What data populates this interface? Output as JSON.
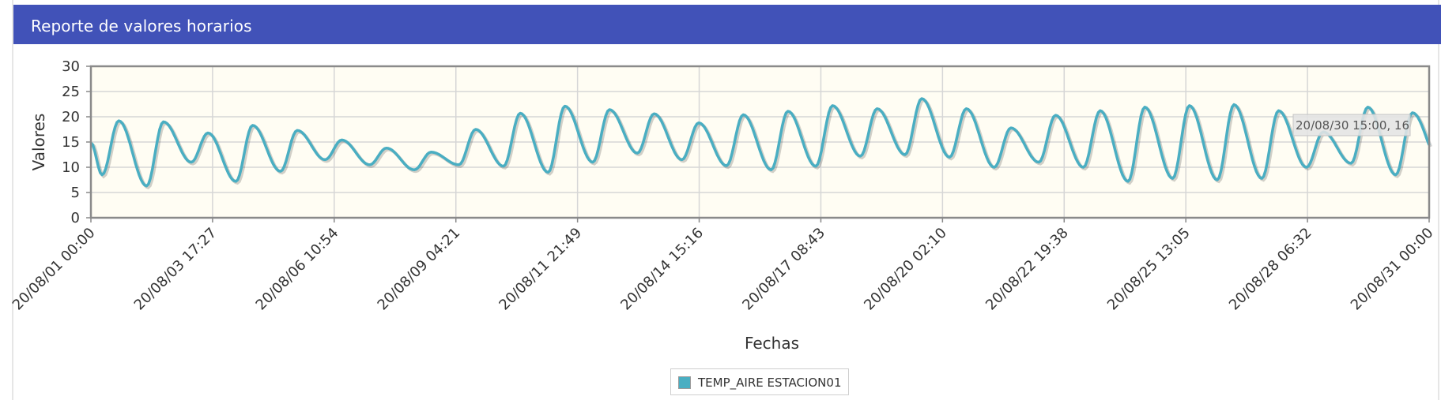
{
  "header": {
    "title": "Reporte de valores horarios"
  },
  "colors": {
    "header_bg": "#4152b8",
    "plot_bg": "#fffdf3",
    "series": "#4aaec2",
    "grid": "#d6d6d6"
  },
  "legend": {
    "label": "TEMP_AIRE ESTACION01"
  },
  "tooltip": {
    "text": "20/08/30 15:00, 16"
  },
  "chart_data": {
    "type": "line",
    "xlabel": "Fechas",
    "ylabel": "Valores",
    "ylim": [
      0,
      30
    ],
    "yticks": [
      "0",
      "5",
      "10",
      "15",
      "20",
      "25",
      "30"
    ],
    "xlim": [
      "20/08/01 00:00",
      "20/08/31 00:00"
    ],
    "xticks": [
      "20/08/01 00:00",
      "20/08/03 17:27",
      "20/08/06 10:54",
      "20/08/09 04:21",
      "20/08/11 21:49",
      "20/08/14 15:16",
      "20/08/17 08:43",
      "20/08/20 02:10",
      "20/08/22 19:38",
      "20/08/25 13:05",
      "20/08/28 06:32",
      "20/08/31 00:00"
    ],
    "grid": true,
    "legend_position": "bottom-center",
    "series": [
      {
        "name": "TEMP_AIRE ESTACION01",
        "daily_min": [
          8.5,
          6.3,
          11.0,
          7.2,
          9.2,
          11.5,
          10.5,
          9.5,
          10.5,
          10.2,
          9.0,
          11.0,
          12.8,
          11.5,
          10.3,
          9.5,
          10.2,
          12.2,
          12.5,
          12.0,
          10.0,
          11.0,
          10.0,
          7.2,
          7.8,
          7.5,
          7.8,
          10.0,
          10.8,
          8.5,
          11.0
        ],
        "daily_max": [
          19.2,
          19.0,
          16.8,
          18.3,
          17.3,
          15.4,
          13.8,
          13.0,
          17.5,
          20.7,
          22.1,
          21.4,
          20.6,
          18.8,
          20.4,
          21.1,
          22.2,
          21.6,
          23.6,
          21.6,
          17.8,
          20.3,
          21.2,
          21.9,
          22.2,
          22.4,
          21.2,
          17.0,
          21.9,
          20.8,
          16.0
        ]
      }
    ]
  }
}
